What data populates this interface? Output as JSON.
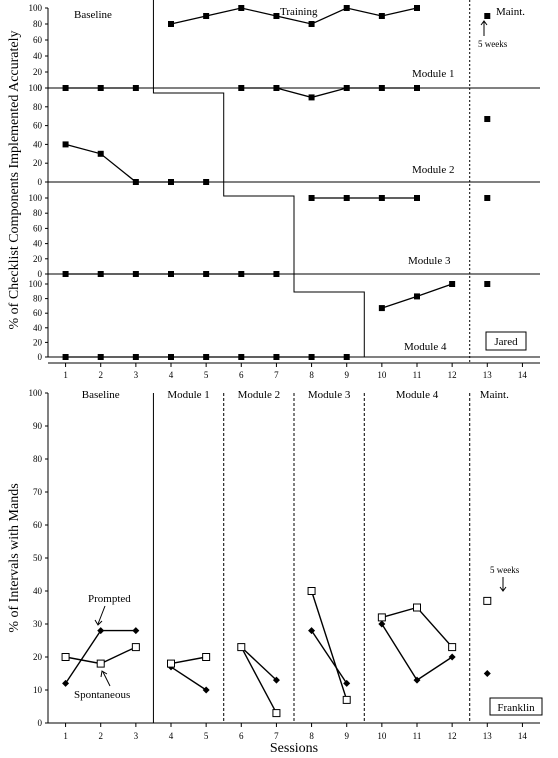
{
  "chart_data": [
    {
      "type": "line",
      "participant": "Jared",
      "ylabel": "% of Checklist Components Implemented Accurately",
      "xlim": [
        0.5,
        14.5
      ],
      "x_ticks": [
        1,
        2,
        3,
        4,
        5,
        6,
        7,
        8,
        9,
        10,
        11,
        12,
        13,
        14
      ],
      "phase_labels": {
        "baseline": "Baseline",
        "training": "Training",
        "maintenance": "Maint."
      },
      "annotation": "5 weeks",
      "panels": [
        {
          "label": "Module 1",
          "ylim": [
            0,
            100
          ],
          "yticks": [
            0,
            20,
            40,
            60,
            80,
            100
          ],
          "series": [
            {
              "x": [
                1,
                2,
                3
              ],
              "y": [
                0,
                0,
                0
              ]
            },
            {
              "x": [
                4,
                5,
                6,
                7,
                8,
                9,
                10,
                11
              ],
              "y": [
                80,
                90,
                100,
                90,
                80,
                100,
                90,
                100
              ]
            },
            {
              "x": [
                13
              ],
              "y": [
                90
              ]
            }
          ]
        },
        {
          "label": "Module 2",
          "ylim": [
            0,
            100
          ],
          "yticks": [
            0,
            20,
            40,
            60,
            80,
            100
          ],
          "series": [
            {
              "x": [
                1,
                2,
                3,
                4,
                5
              ],
              "y": [
                40,
                30,
                0,
                0,
                0
              ]
            },
            {
              "x": [
                6,
                7,
                8,
                9,
                10,
                11
              ],
              "y": [
                100,
                100,
                90,
                100,
                100,
                100
              ]
            },
            {
              "x": [
                13
              ],
              "y": [
                67
              ]
            }
          ]
        },
        {
          "label": "Module 3",
          "ylim": [
            0,
            100
          ],
          "yticks": [
            0,
            20,
            40,
            60,
            80,
            100
          ],
          "series": [
            {
              "x": [
                1,
                2,
                3,
                4,
                5,
                6,
                7
              ],
              "y": [
                0,
                0,
                0,
                0,
                0,
                0,
                0
              ]
            },
            {
              "x": [
                8,
                9,
                10,
                11
              ],
              "y": [
                100,
                100,
                100,
                100
              ]
            },
            {
              "x": [
                13
              ],
              "y": [
                100
              ]
            }
          ]
        },
        {
          "label": "Module 4",
          "ylim": [
            0,
            100
          ],
          "yticks": [
            0,
            20,
            40,
            60,
            80,
            100
          ],
          "series": [
            {
              "x": [
                1,
                2,
                3,
                4,
                5,
                6,
                7,
                8,
                9
              ],
              "y": [
                0,
                0,
                0,
                0,
                0,
                0,
                0,
                0,
                0
              ]
            },
            {
              "x": [
                10,
                11,
                12
              ],
              "y": [
                67,
                83,
                100
              ]
            },
            {
              "x": [
                13
              ],
              "y": [
                100
              ]
            }
          ]
        }
      ],
      "phase_change_lines": [
        [
          3.5,
          5.5
        ],
        [
          5.5,
          7.5
        ],
        [
          7.5,
          9.5
        ]
      ],
      "maintenance_line": 12.5
    },
    {
      "type": "line",
      "participant": "Franklin",
      "xlabel": "Sessions",
      "ylabel": "% of Intervals with Mands",
      "ylim": [
        0,
        100
      ],
      "yticks": [
        0,
        10,
        20,
        30,
        40,
        50,
        60,
        70,
        80,
        90,
        100
      ],
      "xlim": [
        0.5,
        14.5
      ],
      "x_ticks": [
        1,
        2,
        3,
        4,
        5,
        6,
        7,
        8,
        9,
        10,
        11,
        12,
        13,
        14
      ],
      "phases": [
        "Baseline",
        "Module 1",
        "Module 2",
        "Module 3",
        "Module 4",
        "Maint."
      ],
      "phase_boundaries": [
        3.5,
        5.5,
        7.5,
        9.5,
        12.5
      ],
      "annotations": {
        "prompted": "Prompted",
        "spontaneous": "Spontaneous",
        "delay": "5 weeks"
      },
      "series": [
        {
          "name": "Prompted",
          "marker": "diamond",
          "segments": [
            {
              "x": [
                1,
                2,
                3
              ],
              "y": [
                12,
                28,
                28
              ]
            },
            {
              "x": [
                4,
                5
              ],
              "y": [
                17,
                10
              ]
            },
            {
              "x": [
                6,
                7
              ],
              "y": [
                23,
                13
              ]
            },
            {
              "x": [
                8,
                9
              ],
              "y": [
                28,
                12
              ]
            },
            {
              "x": [
                10,
                11,
                12
              ],
              "y": [
                30,
                13,
                20
              ]
            },
            {
              "x": [
                13
              ],
              "y": [
                15
              ]
            }
          ]
        },
        {
          "name": "Spontaneous",
          "marker": "square-open",
          "segments": [
            {
              "x": [
                1,
                2,
                3
              ],
              "y": [
                20,
                18,
                23
              ]
            },
            {
              "x": [
                4,
                5
              ],
              "y": [
                18,
                20
              ]
            },
            {
              "x": [
                6,
                7
              ],
              "y": [
                23,
                3
              ]
            },
            {
              "x": [
                8,
                9
              ],
              "y": [
                40,
                7
              ]
            },
            {
              "x": [
                10,
                11,
                12
              ],
              "y": [
                32,
                35,
                23
              ]
            },
            {
              "x": [
                13
              ],
              "y": [
                37
              ]
            }
          ]
        }
      ]
    }
  ]
}
